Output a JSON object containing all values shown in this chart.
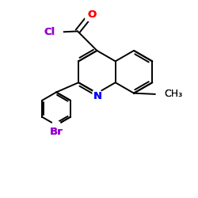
{
  "background_color": "#ffffff",
  "figsize": [
    2.5,
    2.5
  ],
  "dpi": 100,
  "colors": {
    "bond": "#000000",
    "O": "#ff0000",
    "Cl": "#9400d3",
    "N": "#0000ff",
    "Br": "#9400d3",
    "C": "#000000"
  }
}
